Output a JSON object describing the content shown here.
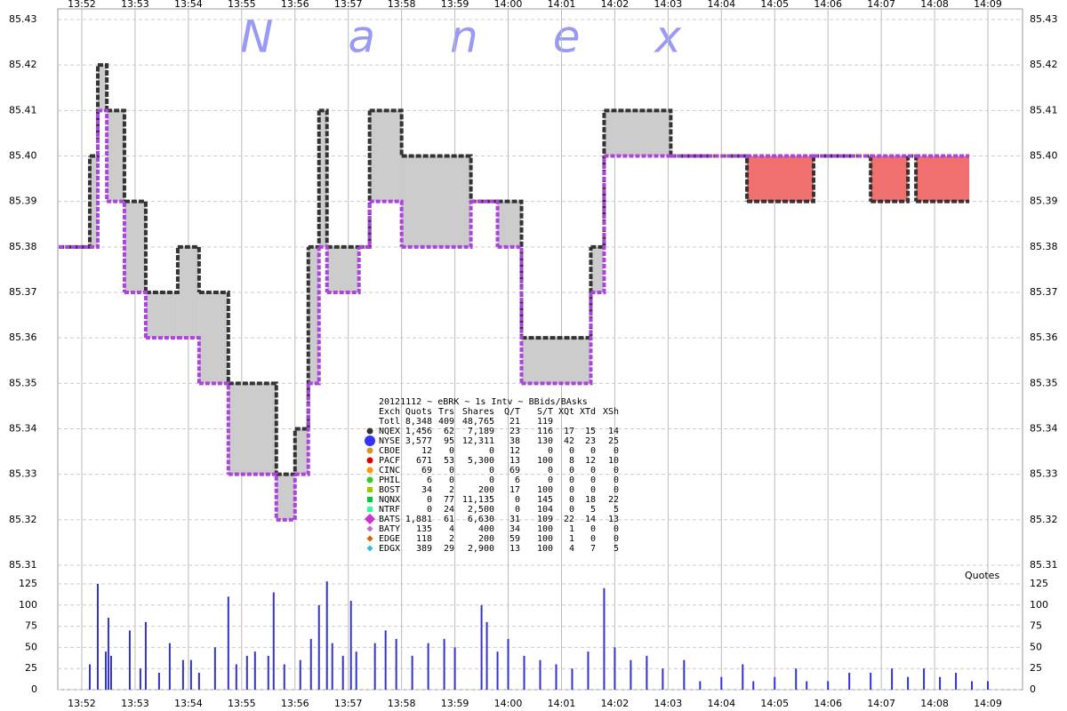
{
  "chart_data": [
    {
      "type": "range",
      "watermark": "Nanex",
      "xlim": [
        -0.45,
        17.65
      ],
      "xticks": [
        {
          "value": 0,
          "label": "13:52"
        },
        {
          "value": 1,
          "label": "13:53"
        },
        {
          "value": 2,
          "label": "13:54"
        },
        {
          "value": 3,
          "label": "13:55"
        },
        {
          "value": 4,
          "label": "13:56"
        },
        {
          "value": 5,
          "label": "13:57"
        },
        {
          "value": 6,
          "label": "13:58"
        },
        {
          "value": 7,
          "label": "13:59"
        },
        {
          "value": 8,
          "label": "14:00"
        },
        {
          "value": 9,
          "label": "14:01"
        },
        {
          "value": 10,
          "label": "14:02"
        },
        {
          "value": 11,
          "label": "14:03"
        },
        {
          "value": 12,
          "label": "14:04"
        },
        {
          "value": 13,
          "label": "14:05"
        },
        {
          "value": 14,
          "label": "14:06"
        },
        {
          "value": 15,
          "label": "14:07"
        },
        {
          "value": 16,
          "label": "14:08"
        },
        {
          "value": 17,
          "label": "14:09"
        }
      ],
      "ylim": [
        85.31,
        85.43
      ],
      "yticks": [
        85.31,
        85.32,
        85.33,
        85.34,
        85.35,
        85.36,
        85.37,
        85.38,
        85.39,
        {
          "value": 85.4,
          "label": "85.40"
        },
        85.41,
        85.42,
        85.43
      ],
      "grid": true,
      "x": [
        -0.43,
        0.15,
        0.3,
        0.47,
        0.8,
        1.2,
        1.8,
        2.2,
        2.75,
        3.65,
        4.0,
        4.25,
        4.45,
        4.6,
        5.2,
        5.4,
        6.0,
        7.3,
        7.8,
        8.25,
        9.55,
        9.8,
        11.05,
        12.48,
        13.73,
        14.8,
        15.5,
        15.65,
        16.65
      ],
      "bid": [
        85.38,
        85.38,
        85.41,
        85.39,
        85.37,
        85.36,
        85.36,
        85.35,
        85.33,
        85.32,
        85.33,
        85.35,
        85.38,
        85.37,
        85.38,
        85.39,
        85.38,
        85.39,
        85.38,
        85.35,
        85.37,
        85.4,
        85.4,
        85.4,
        85.4,
        85.4,
        85.4,
        85.4,
        85.4
      ],
      "ask": [
        85.38,
        85.4,
        85.42,
        85.41,
        85.39,
        85.37,
        85.38,
        85.37,
        85.35,
        85.33,
        85.34,
        85.38,
        85.41,
        85.38,
        85.38,
        85.41,
        85.4,
        85.39,
        85.39,
        85.36,
        85.38,
        85.41,
        85.4,
        85.39,
        85.4,
        85.39,
        85.4,
        85.39,
        85.39
      ],
      "spread_color": "#cccccc",
      "crossed_color": "#f07070",
      "locked_color": "#ffff66",
      "bid_color": "#aa44dd",
      "ask_color": "#333333",
      "legend_table": {
        "title": "20121112 ~ eBRK ~ 1s Intv ~ BBids/BAsks",
        "columns": [
          "Exch",
          "Quots",
          "Trs",
          "Shares",
          "Q/T",
          "S/T",
          "XQt",
          "XTd",
          "XSh"
        ],
        "rows": [
          {
            "cells": [
              "Totl",
              "8,348",
              "409",
              "48,765",
              "21",
              "119"
            ]
          },
          {
            "cells": [
              "NQEX",
              "1,456",
              "62",
              "7,189",
              "23",
              "116",
              "17",
              "15",
              "14"
            ],
            "color": "#333333",
            "marker": "circle"
          },
          {
            "cells": [
              "NYSE",
              "3,577",
              "95",
              "12,311",
              "38",
              "130",
              "42",
              "23",
              "25"
            ],
            "color": "#3333ff",
            "marker": "big-circle"
          },
          {
            "cells": [
              "CBOE",
              "12",
              "0",
              "0",
              "12",
              "0",
              "0",
              "0",
              "0"
            ],
            "color": "#cc9933",
            "marker": "circle"
          },
          {
            "cells": [
              "PACF",
              "671",
              "53",
              "5,300",
              "13",
              "100",
              "8",
              "12",
              "10"
            ],
            "color": "#dd0000",
            "marker": "circle"
          },
          {
            "cells": [
              "CINC",
              "69",
              "0",
              "0",
              "69",
              "0",
              "0",
              "0",
              "0"
            ],
            "color": "#ff9900",
            "marker": "circle"
          },
          {
            "cells": [
              "PHIL",
              "6",
              "0",
              "0",
              "6",
              "0",
              "0",
              "0",
              "0"
            ],
            "color": "#33cc33",
            "marker": "circle"
          },
          {
            "cells": [
              "BOST",
              "34",
              "2",
              "200",
              "17",
              "100",
              "0",
              "0",
              "0"
            ],
            "color": "#99cc00",
            "marker": "square"
          },
          {
            "cells": [
              "NQNX",
              "0",
              "77",
              "11,135",
              "0",
              "145",
              "0",
              "18",
              "22"
            ],
            "color": "#00cc33",
            "marker": "square"
          },
          {
            "cells": [
              "NTRF",
              "0",
              "24",
              "2,500",
              "0",
              "104",
              "0",
              "5",
              "5"
            ],
            "color": "#33ff99",
            "marker": "square"
          },
          {
            "cells": [
              "BATS",
              "1,881",
              "61",
              "6,630",
              "31",
              "109",
              "22",
              "14",
              "13"
            ],
            "color": "#cc33cc",
            "marker": "big-diamond"
          },
          {
            "cells": [
              "BATY",
              "135",
              "4",
              "400",
              "34",
              "100",
              "1",
              "0",
              "0"
            ],
            "color": "#cc66cc",
            "marker": "diamond"
          },
          {
            "cells": [
              "EDGE",
              "118",
              "2",
              "200",
              "59",
              "100",
              "1",
              "0",
              "0"
            ],
            "color": "#cc6600",
            "marker": "diamond"
          },
          {
            "cells": [
              "EDGX",
              "389",
              "29",
              "2,900",
              "13",
              "100",
              "4",
              "7",
              "5"
            ],
            "color": "#33bbdd",
            "marker": "diamond"
          }
        ]
      }
    },
    {
      "type": "bar",
      "label": "Quotes",
      "ylim": [
        0,
        125
      ],
      "yticks": [
        0,
        25,
        50,
        75,
        100,
        125
      ],
      "grid": true,
      "color": "#3333cc",
      "x": [
        0.15,
        0.3,
        0.45,
        0.5,
        0.55,
        0.9,
        1.1,
        1.2,
        1.45,
        1.65,
        1.9,
        2.05,
        2.2,
        2.5,
        2.75,
        2.9,
        3.1,
        3.25,
        3.5,
        3.6,
        3.8,
        4.1,
        4.3,
        4.45,
        4.6,
        4.7,
        4.9,
        5.05,
        5.15,
        5.5,
        5.7,
        5.9,
        6.2,
        6.5,
        6.8,
        7.0,
        7.5,
        7.6,
        7.8,
        8.0,
        8.3,
        8.6,
        8.9,
        9.2,
        9.5,
        9.8,
        10.0,
        10.3,
        10.6,
        10.9,
        11.3,
        11.6,
        12.0,
        12.4,
        12.6,
        13.0,
        13.4,
        13.6,
        14.0,
        14.4,
        14.8,
        15.2,
        15.5,
        15.8,
        16.1,
        16.4,
        16.7,
        17.0
      ],
      "values": [
        30,
        125,
        45,
        85,
        40,
        70,
        25,
        80,
        20,
        55,
        35,
        35,
        20,
        50,
        110,
        30,
        40,
        45,
        40,
        115,
        30,
        35,
        60,
        100,
        128,
        55,
        40,
        105,
        45,
        55,
        70,
        60,
        40,
        55,
        60,
        50,
        100,
        80,
        45,
        60,
        40,
        35,
        30,
        25,
        45,
        120,
        50,
        35,
        40,
        25,
        35,
        10,
        15,
        30,
        10,
        15,
        25,
        10,
        10,
        20,
        20,
        25,
        15,
        25,
        15,
        20,
        10,
        10
      ]
    }
  ]
}
